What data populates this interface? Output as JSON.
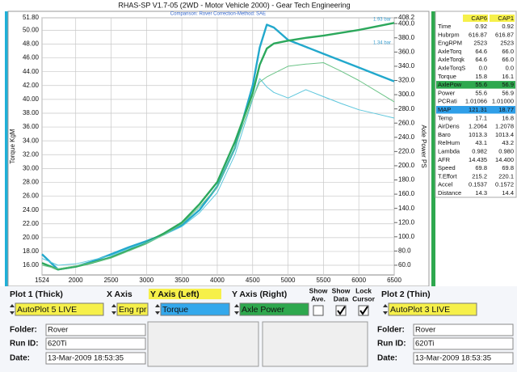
{
  "chart_data": {
    "type": "line",
    "title": "RHAS-SP V1.7-05   (2WD - Motor Vehicle 2000) - Gear Tech Engineering",
    "subtitle": "Comparison: Rover   Correction-Method: SAE",
    "ylabel": "Torque KgM",
    "y2label": "Axle Power PS",
    "annotations": [
      "1.93 bar",
      "1.34 bar"
    ],
    "grid": true,
    "x": [
      1524,
      1750,
      2000,
      2250,
      2500,
      2750,
      3000,
      3250,
      3500,
      3750,
      4000,
      4250,
      4500,
      4600,
      4700,
      4800,
      5000,
      5250,
      5500,
      5750,
      6000,
      6250,
      6500
    ],
    "xlim": [
      1524,
      6500
    ],
    "xticks": [
      1524,
      2000,
      2500,
      3000,
      3500,
      4000,
      4500,
      5000,
      5500,
      6000,
      6500
    ],
    "ylim": [
      14.6,
      51.8
    ],
    "yticks": [
      {
        "value": 16,
        "label": "16.00"
      },
      {
        "value": 18,
        "label": "18.00"
      },
      {
        "value": 20,
        "label": "20.00"
      },
      {
        "value": 22,
        "label": "22.00"
      },
      {
        "value": 24,
        "label": "24.00"
      },
      {
        "value": 26,
        "label": "26.00"
      },
      {
        "value": 28,
        "label": "28.00"
      },
      {
        "value": 30,
        "label": "30.00"
      },
      {
        "value": 32,
        "label": "32.00"
      },
      {
        "value": 34,
        "label": "34.00"
      },
      {
        "value": 36,
        "label": "36.00"
      },
      {
        "value": 38,
        "label": "38.00"
      },
      {
        "value": 40,
        "label": "40.00"
      },
      {
        "value": 42,
        "label": "42.00"
      },
      {
        "value": 44,
        "label": "44.00"
      },
      {
        "value": 46,
        "label": "46.00"
      },
      {
        "value": 48,
        "label": "48.00"
      },
      {
        "value": 50,
        "label": "50.00"
      },
      {
        "value": 51.8,
        "label": "51.80"
      }
    ],
    "y2lim": [
      46.3,
      408.2
    ],
    "y2ticks": [
      {
        "value": 60,
        "label": "60.0"
      },
      {
        "value": 80,
        "label": "80.0"
      },
      {
        "value": 100,
        "label": "100.0"
      },
      {
        "value": 120,
        "label": "120.0"
      },
      {
        "value": 140,
        "label": "140.0"
      },
      {
        "value": 160,
        "label": "160.0"
      },
      {
        "value": 180,
        "label": "180.0"
      },
      {
        "value": 200,
        "label": "200.0"
      },
      {
        "value": 220,
        "label": "220.0"
      },
      {
        "value": 240,
        "label": "240.0"
      },
      {
        "value": 260,
        "label": "260.0"
      },
      {
        "value": 280,
        "label": "280.0"
      },
      {
        "value": 300,
        "label": "300.0"
      },
      {
        "value": 320,
        "label": "320.0"
      },
      {
        "value": 340,
        "label": "340.0"
      },
      {
        "value": 360,
        "label": "360.0"
      },
      {
        "value": 380,
        "label": "380.0"
      },
      {
        "value": 400,
        "label": "400.0"
      },
      {
        "value": 408.2,
        "label": "408.2"
      }
    ],
    "series": [
      {
        "color": "#22a8cc",
        "line": "thick",
        "values": [
          17.6,
          15.4,
          15.8,
          16.6,
          17.6,
          18.6,
          19.5,
          20.5,
          21.8,
          24.0,
          27.4,
          33.0,
          42.0,
          47.5,
          50.8,
          50.4,
          48.6,
          47.6,
          46.6,
          45.6,
          44.6,
          43.6,
          42.6
        ]
      },
      {
        "color": "#2ca85c",
        "line": "thick",
        "axis": "y2",
        "values": [
          63,
          54,
          58,
          64,
          71,
          81,
          92,
          105,
          120,
          146,
          177,
          234,
          302,
          342,
          365,
          372,
          376,
          380,
          383,
          387,
          391,
          396,
          401
        ]
      },
      {
        "color": "#5cc6dc",
        "line": "thin",
        "values": [
          17.0,
          16.0,
          16.2,
          16.8,
          17.4,
          18.4,
          19.3,
          20.4,
          21.6,
          23.6,
          26.5,
          32.0,
          40.0,
          43.0,
          41.8,
          41.0,
          40.2,
          41.4,
          40.4,
          39.4,
          38.5,
          37.9,
          37.3
        ]
      },
      {
        "color": "#6cc488",
        "line": "thin",
        "axis": "y2",
        "values": [
          60,
          55,
          59,
          64,
          70,
          80,
          90,
          103,
          118,
          142,
          170,
          226,
          295,
          318,
          325,
          330,
          340,
          343,
          345,
          333,
          320,
          305,
          290
        ]
      }
    ]
  },
  "readout": {
    "header": [
      "CAP6",
      "CAP1"
    ],
    "rows": [
      {
        "label": "Time",
        "values": [
          "0.92",
          "0.92"
        ]
      },
      {
        "label": "Hubrpm",
        "values": [
          "616.87",
          "616.87"
        ]
      },
      {
        "label": "EngRPM",
        "values": [
          "2523",
          "2523"
        ]
      },
      {
        "label": "AxleTorq",
        "values": [
          "64.6",
          "66.0"
        ]
      },
      {
        "label": "AxleTorqk",
        "values": [
          "64.6",
          "66.0"
        ]
      },
      {
        "label": "AxleTorqS",
        "values": [
          "0.0",
          "0.0"
        ]
      },
      {
        "label": "Torque",
        "values": [
          "15.8",
          "16.1"
        ]
      },
      {
        "label": "AxlePow",
        "values": [
          "55.6",
          "56.9"
        ],
        "highlight": "#2ea84e"
      },
      {
        "label": "Power",
        "values": [
          "55.6",
          "56.9"
        ]
      },
      {
        "label": "PCRati",
        "values": [
          "1.01066",
          "1.01000"
        ]
      },
      {
        "label": "MAP",
        "values": [
          "121.31",
          "18.77"
        ],
        "highlight": "#2f9fe8"
      },
      {
        "label": "Temp",
        "values": [
          "17.1",
          "16.8"
        ]
      },
      {
        "label": "AirDens",
        "values": [
          "1.2064",
          "1.2078"
        ]
      },
      {
        "label": "Baro",
        "values": [
          "1013.3",
          "1013.4"
        ]
      },
      {
        "label": "RelHum",
        "values": [
          "43.1",
          "43.2"
        ]
      },
      {
        "label": "Lambda",
        "values": [
          "0.982",
          "0.980"
        ]
      },
      {
        "label": "AFR",
        "values": [
          "14.435",
          "14.400"
        ]
      },
      {
        "label": "Speed",
        "values": [
          "69.8",
          "69.8"
        ]
      },
      {
        "label": "T.Effort",
        "values": [
          "215.2",
          "220.1"
        ]
      },
      {
        "label": "Accel",
        "values": [
          "0.1537",
          "0.1572"
        ]
      },
      {
        "label": "Distance",
        "values": [
          "14.3",
          "14.4"
        ]
      }
    ]
  },
  "panel": {
    "headers": [
      "Plot 1 (Thick)",
      "X Axis",
      "Y Axis (Left)",
      "Y Axis (Right)",
      "Plot 2 (Thin)"
    ],
    "selectors": [
      {
        "text": "AutoPlot 5 LIVE",
        "color": "#f6f04a"
      },
      {
        "text": "Eng rpr",
        "color": "#f6f04a"
      },
      {
        "text": "Torque",
        "color": "#33a8ec"
      },
      {
        "text": "Axle Power",
        "color": "#2ea84e"
      },
      {
        "text": "AutoPlot 3 LIVE",
        "color": "#f6f04a"
      }
    ],
    "checks": [
      {
        "label": [
          "Show",
          "Ave."
        ],
        "checked": false
      },
      {
        "label": [
          "Show",
          "Data"
        ],
        "checked": true
      },
      {
        "label": [
          "Lock",
          "Cursor"
        ],
        "checked": true
      }
    ],
    "runs": [
      {
        "folder_label": "Folder:",
        "folder": "Rover",
        "run_label": "Run ID:",
        "run": "620Ti",
        "date_label": "Date:",
        "date": "13-Mar-2009  18:53:35"
      },
      {
        "folder_label": "Folder:",
        "folder": "Rover",
        "run_label": "Run ID:",
        "run": "620Ti",
        "date_label": "Date:",
        "date": "13-Mar-2009  18:53:35"
      }
    ]
  }
}
